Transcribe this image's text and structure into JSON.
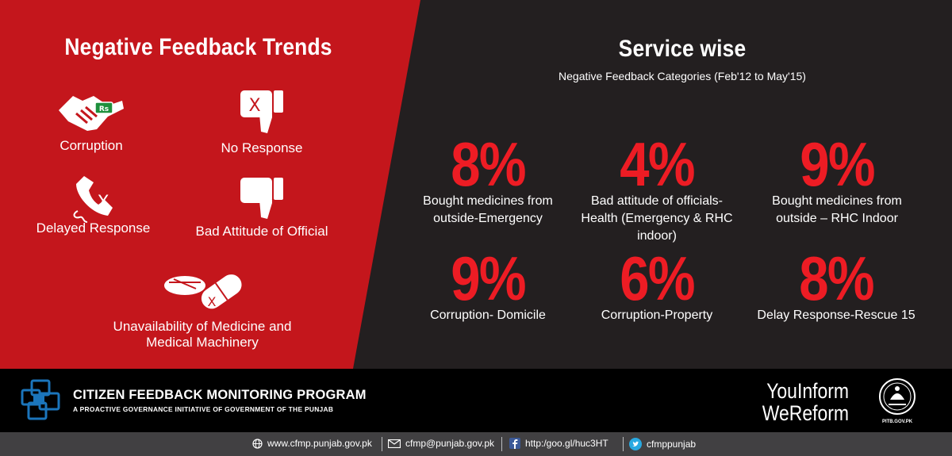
{
  "left_panel": {
    "title": "Negative Feedback Trends",
    "categories": [
      {
        "label": "Corruption",
        "icon": "handshake-money-icon"
      },
      {
        "label": "No Response",
        "icon": "thumbs-down-x-icon"
      },
      {
        "label": "Delayed Response",
        "icon": "phone-x-icon"
      },
      {
        "label": "Bad Attitude of Official",
        "icon": "thumbs-down-icon"
      },
      {
        "label_line1": "Unavailability of Medicine and",
        "label_line2": "Medical Machinery",
        "icon": "pills-x-icon"
      }
    ]
  },
  "right_panel": {
    "title": "Service wise",
    "subtitle": "Negative Feedback Categories (Feb'12 to May'15)",
    "stats": [
      {
        "value": "8%",
        "line1": "Bought medicines from",
        "line2": "outside-Emergency",
        "line3": ""
      },
      {
        "value": "4%",
        "line1": "Bad attitude of officials-",
        "line2": "Health (Emergency & RHC",
        "line3": "indoor)"
      },
      {
        "value": "9%",
        "line1": "Bought medicines from",
        "line2": "outside – RHC Indoor",
        "line3": ""
      },
      {
        "value": "9%",
        "line1": "Corruption- Domicile",
        "line2": "",
        "line3": ""
      },
      {
        "value": "6%",
        "line1": "Corruption-Property",
        "line2": "",
        "line3": ""
      },
      {
        "value": "8%",
        "line1": "Delay Response-Rescue 15",
        "line2": "",
        "line3": ""
      }
    ]
  },
  "footer": {
    "program_title": "CITIZEN FEEDBACK MONITORING PROGRAM",
    "program_subtitle": "A PROACTIVE GOVERNANCE INITIATIVE OF GOVERNMENT OF THE PUNJAB",
    "slogan_line1": "YouInform",
    "slogan_line2": "WeReform",
    "emblem_label": "PITB.GOV.PK"
  },
  "contacts": {
    "website": "www.cfmp.punjab.gov.pk",
    "email": "cfmp@punjab.gov.pk",
    "facebook": "http:/goo.gl/huc3HT",
    "twitter": "cfmppunjab"
  },
  "colors": {
    "red_panel": "#c4161c",
    "dark_bg": "#231f20",
    "accent_red": "#ed1c24",
    "contact_bar": "#414042"
  }
}
